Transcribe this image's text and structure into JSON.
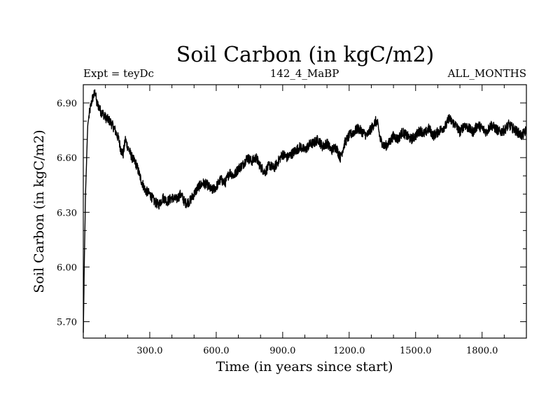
{
  "chart_data": {
    "type": "line",
    "title": "Soil Carbon (in kgC/m2)",
    "subtitle_left": "Expt = teyDc",
    "subtitle_center": "142_4_MaBP",
    "subtitle_right": "ALL_MONTHS",
    "xlabel": "Time (in years since start)",
    "ylabel": "Soil Carbon (in kgC/m2)",
    "xlim": [
      0,
      2000
    ],
    "ylim": [
      5.61,
      7.0
    ],
    "xticks": [
      300,
      600,
      900,
      1200,
      1500,
      1800
    ],
    "xtick_labels": [
      "300.0",
      "600.0",
      "900.0",
      "1200.0",
      "1500.0",
      "1800.0"
    ],
    "yticks": [
      5.7,
      6.0,
      6.3,
      6.6,
      6.9
    ],
    "ytick_labels": [
      "5.70",
      "6.00",
      "6.30",
      "6.60",
      "6.90"
    ],
    "series": [
      {
        "name": "Soil Carbon",
        "color": "#000000",
        "x": [
          0,
          5,
          10,
          20,
          30,
          40,
          50,
          55,
          60,
          70,
          80,
          90,
          100,
          120,
          140,
          160,
          170,
          180,
          190,
          200,
          220,
          240,
          260,
          280,
          300,
          320,
          340,
          360,
          380,
          400,
          420,
          440,
          460,
          480,
          500,
          520,
          540,
          560,
          580,
          600,
          620,
          640,
          660,
          680,
          700,
          720,
          740,
          760,
          780,
          800,
          820,
          840,
          860,
          880,
          900,
          920,
          940,
          960,
          980,
          1000,
          1020,
          1040,
          1060,
          1080,
          1100,
          1120,
          1140,
          1160,
          1180,
          1200,
          1220,
          1240,
          1260,
          1280,
          1300,
          1320,
          1330,
          1340,
          1360,
          1380,
          1400,
          1420,
          1440,
          1460,
          1480,
          1500,
          1520,
          1540,
          1560,
          1580,
          1600,
          1620,
          1640,
          1650,
          1660,
          1680,
          1700,
          1720,
          1740,
          1760,
          1780,
          1800,
          1820,
          1840,
          1860,
          1880,
          1900,
          1920,
          1940,
          1960,
          1980,
          2000
        ],
        "y": [
          5.64,
          6.05,
          6.4,
          6.78,
          6.86,
          6.92,
          6.95,
          6.96,
          6.9,
          6.88,
          6.85,
          6.84,
          6.82,
          6.8,
          6.76,
          6.7,
          6.64,
          6.62,
          6.7,
          6.66,
          6.6,
          6.56,
          6.48,
          6.42,
          6.4,
          6.36,
          6.34,
          6.38,
          6.36,
          6.38,
          6.37,
          6.4,
          6.35,
          6.36,
          6.4,
          6.44,
          6.46,
          6.45,
          6.42,
          6.44,
          6.48,
          6.46,
          6.52,
          6.5,
          6.54,
          6.56,
          6.6,
          6.58,
          6.6,
          6.55,
          6.52,
          6.56,
          6.54,
          6.58,
          6.62,
          6.6,
          6.62,
          6.64,
          6.66,
          6.64,
          6.67,
          6.68,
          6.7,
          6.66,
          6.68,
          6.64,
          6.66,
          6.6,
          6.68,
          6.72,
          6.74,
          6.76,
          6.74,
          6.72,
          6.76,
          6.8,
          6.78,
          6.7,
          6.66,
          6.68,
          6.72,
          6.7,
          6.74,
          6.72,
          6.7,
          6.72,
          6.75,
          6.73,
          6.76,
          6.72,
          6.74,
          6.76,
          6.78,
          6.82,
          6.8,
          6.78,
          6.74,
          6.78,
          6.76,
          6.74,
          6.78,
          6.76,
          6.74,
          6.78,
          6.76,
          6.74,
          6.75,
          6.78,
          6.76,
          6.74,
          6.72,
          6.75
        ]
      }
    ]
  }
}
